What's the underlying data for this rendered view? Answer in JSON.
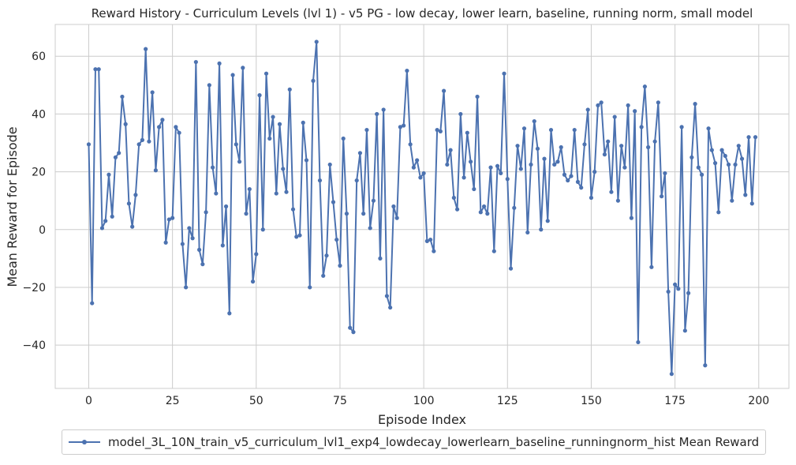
{
  "colors": {
    "series": "#4c72b0",
    "grid": "#cccccc",
    "frame": "#cccccc",
    "text": "#262626"
  },
  "chart_data": {
    "type": "line",
    "title": "Reward History - Curriculum Levels (lvl 1) - v5 PG - low decay, lower learn, baseline, running norm, small model",
    "xlabel": "Episode Index",
    "ylabel": "Mean Reward for Episode",
    "xlim": [
      -10,
      209
    ],
    "ylim": [
      -55,
      71
    ],
    "xticks": [
      0,
      25,
      50,
      75,
      100,
      125,
      150,
      175,
      200
    ],
    "yticks": [
      -40,
      -20,
      0,
      20,
      40,
      60
    ],
    "xtick_labels": [
      "0",
      "25",
      "50",
      "75",
      "100",
      "125",
      "150",
      "175",
      "200"
    ],
    "ytick_labels": [
      "−40",
      "−20",
      "0",
      "20",
      "40",
      "60"
    ],
    "grid": true,
    "legend_position": "bottom-center",
    "series": [
      {
        "name": "model_3L_10N_train_v5_curriculum_lvl1_exp4_lowdecay_lowerlearn_baseline_runningnorm_hist Mean Reward",
        "marker": "o",
        "y": [
          29.5,
          -25.5,
          55.5,
          55.5,
          0.5,
          3,
          19,
          4.5,
          25,
          26.5,
          46,
          36.5,
          9,
          1,
          12,
          29.5,
          31,
          62.5,
          30.5,
          47.5,
          20.5,
          35.5,
          38,
          -4.5,
          3.5,
          4,
          35.5,
          33.5,
          -5,
          -20,
          0.5,
          -3,
          58,
          -7,
          -12,
          6,
          50,
          21.5,
          12.5,
          57.5,
          -5.5,
          8,
          -29,
          53.5,
          29.5,
          23.5,
          56,
          5.5,
          14,
          -18,
          -8.5,
          46.5,
          0,
          54,
          31.5,
          39,
          12.5,
          36.5,
          21,
          13,
          48.5,
          7,
          -2.5,
          -2,
          37,
          24,
          -20,
          51.5,
          65,
          17,
          -16,
          -9,
          22.5,
          9.5,
          -3.5,
          -12.5,
          31.5,
          5.5,
          -34,
          -35.5,
          17,
          26.5,
          5.5,
          34.5,
          0.5,
          10,
          40,
          -10,
          41.5,
          -23,
          -27,
          8,
          4,
          35.5,
          36,
          55,
          29.5,
          21.5,
          24,
          18,
          19.5,
          -4,
          -3.5,
          -7.5,
          34.5,
          34,
          48,
          22.5,
          27.5,
          11,
          7,
          40,
          18,
          33.5,
          23.5,
          14,
          46,
          6,
          8,
          5.5,
          21.5,
          -7.5,
          22,
          19.5,
          54,
          17.5,
          -13.5,
          7.5,
          29,
          21,
          35,
          -1,
          22.5,
          37.5,
          28,
          0,
          24.5,
          3,
          34.5,
          22.5,
          23.5,
          28.5,
          19,
          17,
          18.5,
          34.5,
          16.5,
          14.5,
          29.5,
          41.5,
          11,
          20,
          43,
          44,
          26,
          30.5,
          13,
          39,
          10,
          29,
          21.5,
          43,
          4,
          41,
          -39,
          35.5,
          49.5,
          28.5,
          -13,
          30.5,
          44,
          11.5,
          19.5,
          -21.5,
          -50,
          -19,
          -20.5,
          35.5,
          -35,
          -22,
          25,
          43.5,
          21.5,
          19,
          -47,
          35,
          27.5,
          23,
          6,
          27.5,
          25.5,
          22.5,
          10,
          22.5,
          29,
          24.5,
          12,
          32,
          9,
          32
        ]
      }
    ]
  }
}
